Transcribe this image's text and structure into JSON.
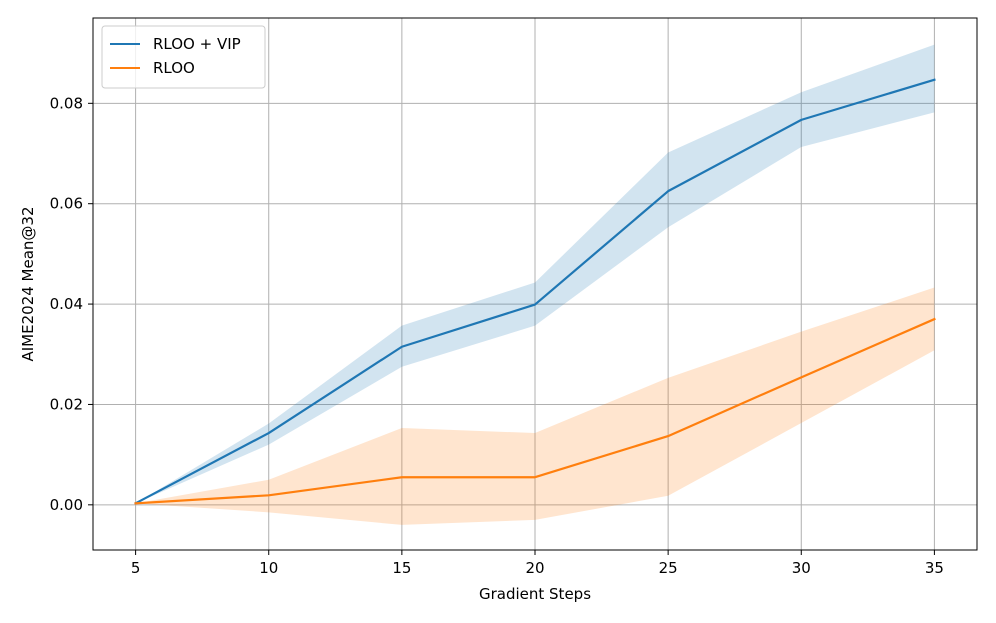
{
  "chart_data": {
    "type": "line",
    "title": "",
    "xlabel": "Gradient Steps",
    "ylabel": "AIME2024 Mean@32",
    "x": [
      5,
      10,
      15,
      20,
      25,
      30,
      35
    ],
    "xlim": [
      3.4,
      36.6
    ],
    "ylim": [
      -0.009,
      0.097
    ],
    "xticks": [
      5,
      10,
      15,
      20,
      25,
      30,
      35
    ],
    "yticks": [
      0.0,
      0.02,
      0.04,
      0.06,
      0.08
    ],
    "xtick_labels": [
      "5",
      "10",
      "15",
      "20",
      "25",
      "30",
      "35"
    ],
    "ytick_labels": [
      "0.00",
      "0.02",
      "0.04",
      "0.06",
      "0.08"
    ],
    "grid": true,
    "legend_position": "top-left",
    "series": [
      {
        "name": "RLOO + VIP",
        "color": "#1f77b4",
        "band_color": "#1f77b4",
        "values": [
          0.0003,
          0.0143,
          0.0315,
          0.0399,
          0.0625,
          0.0767,
          0.0847
        ],
        "lower": [
          0.0003,
          0.012,
          0.0275,
          0.0357,
          0.0553,
          0.0713,
          0.0782
        ],
        "upper": [
          0.0003,
          0.0162,
          0.0357,
          0.0443,
          0.0702,
          0.0822,
          0.0917
        ]
      },
      {
        "name": "RLOO",
        "color": "#ff7f0e",
        "band_color": "#ff7f0e",
        "values": [
          0.0003,
          0.0019,
          0.0055,
          0.0055,
          0.0137,
          0.0254,
          0.037
        ],
        "lower": [
          0.0003,
          -0.0015,
          -0.004,
          -0.003,
          0.0018,
          0.0163,
          0.0308
        ],
        "upper": [
          0.0003,
          0.005,
          0.0153,
          0.0143,
          0.0253,
          0.0345,
          0.0433
        ]
      }
    ]
  }
}
